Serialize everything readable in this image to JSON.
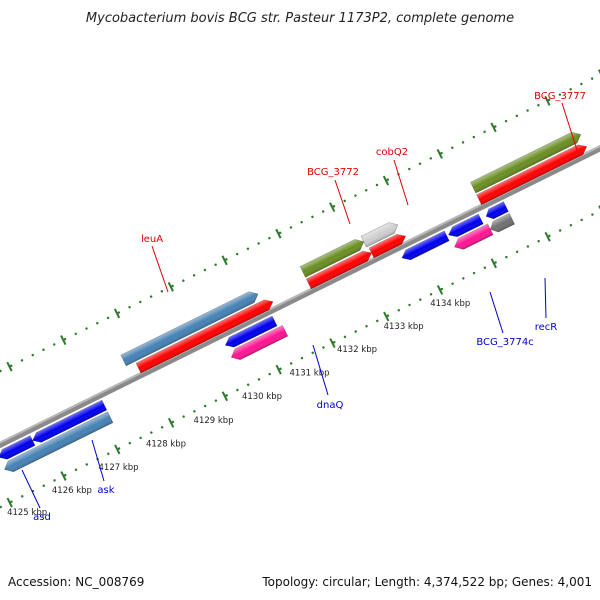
{
  "title": "Mycobacterium bovis BCG str. Pasteur 1173P2, complete genome",
  "footer": {
    "accession": "Accession: NC_008769",
    "stats": "Topology: circular; Length: 4,374,522 bp; Genes: 4,001"
  },
  "colors": {
    "backbone": "#8a8a8a",
    "cds": "#ff0000",
    "gene_blue": "#0000ee",
    "gene_steel": "#4682b4",
    "gene_olive": "#6b8e23",
    "gene_pink": "#ff1493",
    "gene_lightgray": "#cfcfcf",
    "gene_darkgray": "#707070",
    "tick_green": "#2a7a2a",
    "label_forward": "#dd0000",
    "label_reverse": "#0000cc"
  },
  "kbp_labels": [
    "4125 kbp",
    "4126 kbp",
    "4127 kbp",
    "4128 kbp",
    "4129 kbp",
    "4130 kbp",
    "4131 kbp",
    "4132 kbp",
    "4133 kbp",
    "4134 kbp"
  ],
  "gene_labels": [
    {
      "text": "leuA",
      "strand": "forward"
    },
    {
      "text": "BCG_3772",
      "strand": "forward"
    },
    {
      "text": "cobQ2",
      "strand": "forward"
    },
    {
      "text": "BCG_3777",
      "strand": "forward"
    },
    {
      "text": "asd",
      "strand": "reverse"
    },
    {
      "text": "ask",
      "strand": "reverse"
    },
    {
      "text": "dnaQ",
      "strand": "reverse"
    },
    {
      "text": "BCG_3774c",
      "strand": "reverse"
    },
    {
      "text": "recR",
      "strand": "reverse"
    }
  ]
}
